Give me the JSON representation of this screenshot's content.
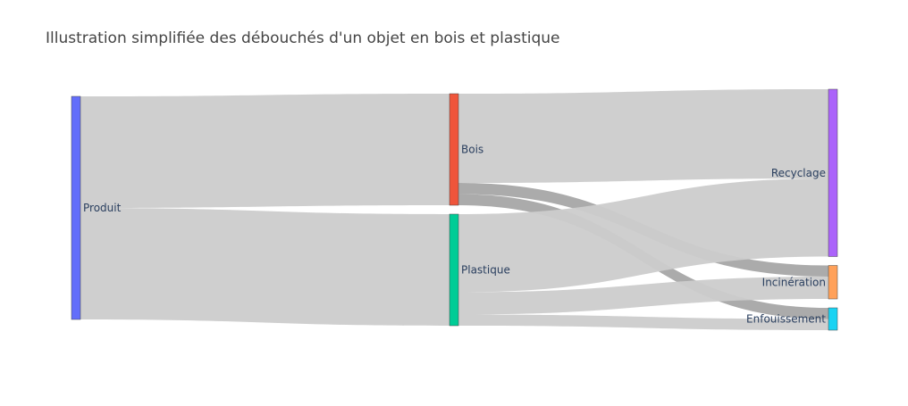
{
  "chart_data": {
    "type": "sankey",
    "title": "Illustration simplifiée des débouchés d'un objet en bois et plastique",
    "nodes": [
      {
        "id": "produit",
        "label": "Produit",
        "column": 0,
        "color": "#636efa"
      },
      {
        "id": "bois",
        "label": "Bois",
        "column": 1,
        "color": "#ef553b"
      },
      {
        "id": "plastique",
        "label": "Plastique",
        "column": 1,
        "color": "#00cc96"
      },
      {
        "id": "recyclage",
        "label": "Recyclage",
        "column": 2,
        "color": "#ab63fa"
      },
      {
        "id": "incineration",
        "label": "Incinération",
        "column": 2,
        "color": "#ffa15a"
      },
      {
        "id": "enfouissement",
        "label": "Enfouissement",
        "column": 2,
        "color": "#19d3f3"
      }
    ],
    "links": [
      {
        "source": "produit",
        "target": "bois",
        "value": 50,
        "color": "#cccccc"
      },
      {
        "source": "produit",
        "target": "plastique",
        "value": 50,
        "color": "#cccccc"
      },
      {
        "source": "bois",
        "target": "recyclage",
        "value": 40,
        "color": "#cccccc"
      },
      {
        "source": "bois",
        "target": "incineration",
        "value": 5,
        "color": "#a6a6a6"
      },
      {
        "source": "bois",
        "target": "enfouissement",
        "value": 5,
        "color": "#a6a6a6"
      },
      {
        "source": "plastique",
        "target": "recyclage",
        "value": 35,
        "color": "#cccccc"
      },
      {
        "source": "plastique",
        "target": "incineration",
        "value": 10,
        "color": "#cccccc"
      },
      {
        "source": "plastique",
        "target": "enfouissement",
        "value": 5,
        "color": "#cccccc"
      }
    ]
  }
}
